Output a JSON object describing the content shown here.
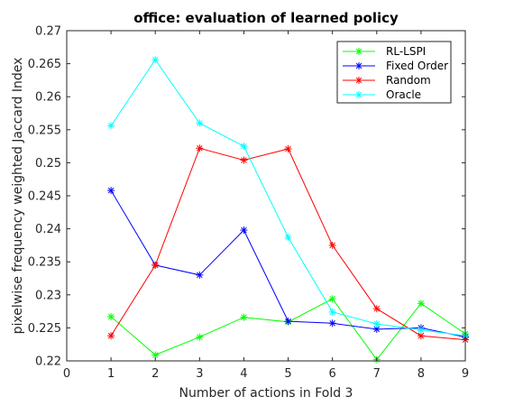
{
  "chart_data": {
    "type": "line",
    "title": "office: evaluation of learned policy",
    "xlabel": "Number of actions in Fold 3",
    "ylabel": "pixelwise frequency weighted Jaccard Index",
    "x": [
      1,
      2,
      3,
      4,
      5,
      6,
      7,
      8,
      9
    ],
    "xlim": [
      0,
      9
    ],
    "ylim": [
      0.22,
      0.27
    ],
    "xticks": [
      "0",
      "1",
      "2",
      "3",
      "4",
      "5",
      "6",
      "7",
      "8",
      "9"
    ],
    "yticks": [
      "0.22",
      "0.225",
      "0.23",
      "0.235",
      "0.24",
      "0.245",
      "0.25",
      "0.255",
      "0.26",
      "0.265",
      "0.27"
    ],
    "grid": false,
    "legend_position": "top-right",
    "marker": "asterisk",
    "series": [
      {
        "name": "RL-LSPI",
        "color": "#00ff00",
        "values": [
          0.2267,
          0.2209,
          0.2236,
          0.2266,
          0.2259,
          0.2294,
          0.2202,
          0.2287,
          0.2241
        ]
      },
      {
        "name": "Fixed Order",
        "color": "#0000ff",
        "values": [
          0.2458,
          0.2345,
          0.233,
          0.2398,
          0.226,
          0.2257,
          0.2248,
          0.225,
          0.2236
        ]
      },
      {
        "name": "Random",
        "color": "#ff0000",
        "values": [
          0.2238,
          0.2345,
          0.2522,
          0.2504,
          0.2521,
          0.2375,
          0.2279,
          0.2238,
          0.2232
        ]
      },
      {
        "name": "Oracle",
        "color": "#00ffff",
        "values": [
          0.2556,
          0.2656,
          0.256,
          0.2525,
          0.2387,
          0.2274,
          0.2256,
          0.2247,
          0.2238
        ]
      }
    ]
  }
}
